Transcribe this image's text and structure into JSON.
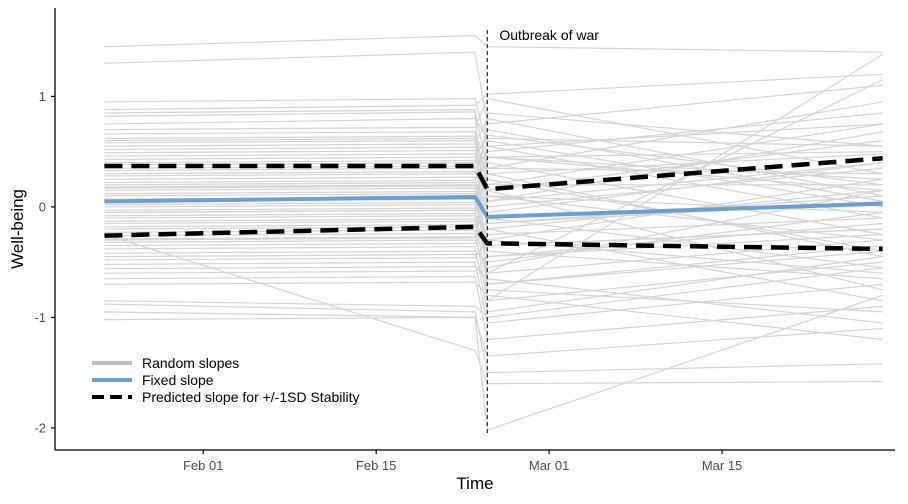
{
  "chart_data": {
    "type": "line",
    "title": "",
    "xlabel": "Time",
    "ylabel": "Well-being",
    "x_domain": [
      "2022-01-20",
      "2022-03-29"
    ],
    "ylim": [
      -2.2,
      1.8
    ],
    "x_ticks": [
      {
        "date": "2022-02-01",
        "label": "Feb 01"
      },
      {
        "date": "2022-02-15",
        "label": "Feb 15"
      },
      {
        "date": "2022-03-01",
        "label": "Mar 01"
      },
      {
        "date": "2022-03-15",
        "label": "Mar 15"
      }
    ],
    "y_ticks": [
      {
        "value": 1,
        "label": "1"
      },
      {
        "value": 0,
        "label": "0"
      },
      {
        "value": -1,
        "label": "-1"
      },
      {
        "value": -2,
        "label": "-2"
      }
    ],
    "event": {
      "date": "2022-02-24",
      "label": "Outbreak of war",
      "style": "dashed"
    },
    "period_dates": [
      "2022-01-24",
      "2022-02-23",
      "2022-02-24",
      "2022-03-28"
    ],
    "random_slopes": {
      "name": "Random slopes",
      "color": "#d3d3d3",
      "lines": [
        [
          1.45,
          1.55,
          1.45,
          1.4
        ],
        [
          1.3,
          1.4,
          0.75,
          1.1
        ],
        [
          0.88,
          0.92,
          1.02,
          1.2
        ],
        [
          0.82,
          0.86,
          0.35,
          0.95
        ],
        [
          0.75,
          0.8,
          0.62,
          0.55
        ],
        [
          0.7,
          0.72,
          0.98,
          0.3
        ],
        [
          0.66,
          0.68,
          0.2,
          0.75
        ],
        [
          0.62,
          0.64,
          0.45,
          0.25
        ],
        [
          0.58,
          0.6,
          0.05,
          0.68
        ],
        [
          0.55,
          0.57,
          0.8,
          0.1
        ],
        [
          0.52,
          0.54,
          0.3,
          0.48
        ],
        [
          0.49,
          0.51,
          0.55,
          -0.1
        ],
        [
          0.46,
          0.48,
          -0.05,
          0.4
        ],
        [
          0.43,
          0.45,
          0.65,
          0.2
        ],
        [
          0.4,
          0.42,
          0.15,
          0.6
        ],
        [
          0.38,
          0.4,
          0.4,
          -0.25
        ],
        [
          0.35,
          0.37,
          -0.2,
          0.15
        ],
        [
          0.33,
          0.35,
          0.5,
          0.85
        ],
        [
          0.3,
          0.32,
          0.1,
          -0.05
        ],
        [
          0.28,
          0.3,
          0.35,
          0.3
        ],
        [
          0.25,
          0.27,
          -0.35,
          -0.2
        ],
        [
          0.22,
          0.24,
          0.7,
          0.05
        ],
        [
          0.2,
          0.22,
          0.0,
          0.35
        ],
        [
          0.17,
          0.19,
          0.25,
          -0.4
        ],
        [
          0.15,
          0.17,
          -0.15,
          0.1
        ],
        [
          0.12,
          0.14,
          0.45,
          0.5
        ],
        [
          0.1,
          0.12,
          -0.45,
          -0.15
        ],
        [
          0.07,
          0.09,
          0.2,
          0.2
        ],
        [
          0.05,
          0.07,
          -0.1,
          -0.55
        ],
        [
          0.02,
          0.04,
          0.6,
          0.0
        ],
        [
          0.0,
          0.02,
          -0.3,
          0.25
        ],
        [
          -0.03,
          -0.01,
          0.1,
          -0.3
        ],
        [
          -0.05,
          -0.03,
          -0.55,
          0.15
        ],
        [
          -0.08,
          -0.06,
          0.3,
          -0.45
        ],
        [
          -0.1,
          -0.08,
          -0.25,
          -0.1
        ],
        [
          -0.13,
          -0.11,
          -0.7,
          -0.35
        ],
        [
          -0.15,
          -0.13,
          0.05,
          0.4
        ],
        [
          -0.18,
          -0.16,
          -0.4,
          -0.65
        ],
        [
          -0.2,
          -0.18,
          -0.15,
          0.05
        ],
        [
          -0.23,
          -0.21,
          -0.85,
          -0.5
        ],
        [
          -0.26,
          -0.24,
          -0.35,
          -0.2
        ],
        [
          -0.29,
          -0.27,
          0.15,
          -0.75
        ],
        [
          -0.32,
          -0.3,
          -0.6,
          -0.3
        ],
        [
          -0.35,
          -0.33,
          -0.2,
          -0.85
        ],
        [
          -0.38,
          -0.36,
          -0.95,
          -0.45
        ],
        [
          -0.42,
          -0.4,
          -0.5,
          -0.05
        ],
        [
          -0.45,
          -0.43,
          -0.75,
          -0.95
        ],
        [
          -0.48,
          -0.46,
          -0.3,
          -0.6
        ],
        [
          -0.52,
          -0.5,
          -1.05,
          -0.7
        ],
        [
          -0.56,
          -0.54,
          -0.65,
          -1.05
        ],
        [
          -0.6,
          -0.58,
          -0.45,
          -0.25
        ],
        [
          -0.65,
          -0.63,
          -1.2,
          -0.9
        ],
        [
          -0.7,
          -0.68,
          -0.8,
          -1.2
        ],
        [
          -0.85,
          -0.9,
          -1.0,
          -0.55
        ],
        [
          -0.88,
          -0.95,
          -1.5,
          -1.42
        ],
        [
          -0.95,
          -1.0,
          -1.35,
          -1.1
        ],
        [
          -1.02,
          -1.0,
          -2.02,
          -0.8
        ],
        [
          0.95,
          0.98,
          0.55,
          0.75
        ],
        [
          0.6,
          0.62,
          -0.7,
          -0.4
        ],
        [
          -0.3,
          -0.28,
          0.45,
          0.15
        ],
        [
          0.18,
          0.2,
          -0.6,
          1.15
        ],
        [
          -0.05,
          -0.03,
          0.85,
          0.55
        ],
        [
          -0.25,
          -1.3,
          -1.6,
          -1.58
        ],
        [
          0.85,
          0.88,
          -0.85,
          1.38
        ]
      ]
    },
    "series": [
      {
        "name": "Fixed slope",
        "color": "#6a9fd4",
        "style": "solid",
        "values": [
          0.05,
          0.09,
          -0.09,
          0.03
        ]
      },
      {
        "name": "Predicted slope for +/-1SD Stability (+1SD)",
        "color": "#000000",
        "style": "dashed",
        "values": [
          0.37,
          0.37,
          0.16,
          0.44
        ]
      },
      {
        "name": "Predicted slope for +/-1SD Stability (-1SD)",
        "color": "#000000",
        "style": "dashed",
        "values": [
          -0.26,
          -0.18,
          -0.33,
          -0.38
        ]
      }
    ],
    "legend": {
      "position": "bottom-left",
      "items": [
        {
          "label": "Random slopes",
          "color": "#bdbdbd",
          "style": "solid"
        },
        {
          "label": "Fixed slope",
          "color": "#6a9fd4",
          "style": "solid"
        },
        {
          "label": "Predicted slope for +/-1SD Stability",
          "color": "#000000",
          "style": "dashed"
        }
      ]
    }
  }
}
